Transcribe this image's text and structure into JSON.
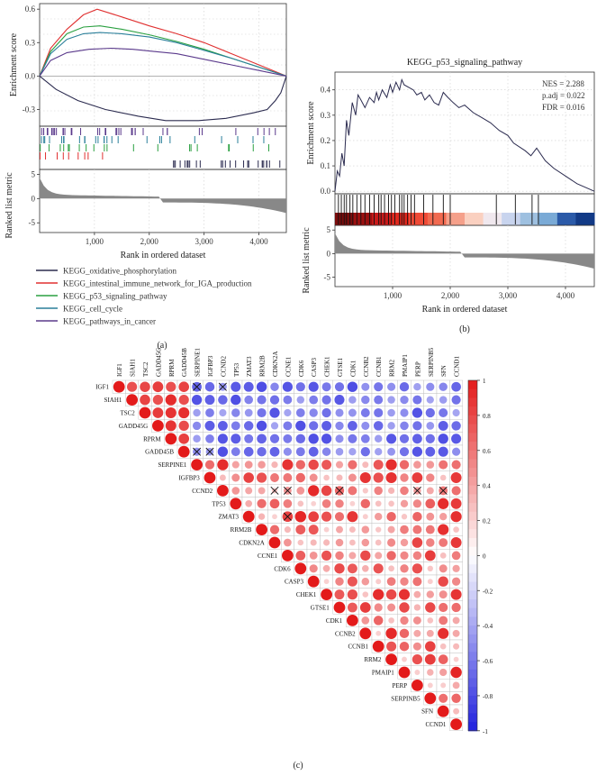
{
  "panel_labels": [
    "(a)",
    "(b)",
    "(c)"
  ],
  "colors": {
    "oxphos": "#2b2b4f",
    "iga": "#e03030",
    "p53": "#2aa040",
    "cellcycle": "#2a7f9a",
    "cancer": "#5b3a8c",
    "metric": "#888888",
    "pos": "#e31a1c",
    "neg": "#2233dd"
  },
  "chart_data": [
    {
      "type": "line",
      "panel": "(a)",
      "xlabel": "Rank in ordered dataset",
      "ylabel_top": "Enrichment score",
      "ylabel_bottom": "Ranked list metric",
      "x_ticks": [
        "1,000",
        "2,000",
        "3,000",
        "4,000"
      ],
      "x_tick_values": [
        1000,
        2000,
        3000,
        4000
      ],
      "xlim": [
        0,
        4500
      ],
      "y_ticks_top": [
        "0.6",
        "0.3",
        "0.0",
        "-0.3"
      ],
      "y_tick_values_top": [
        0.6,
        0.3,
        0.0,
        -0.3
      ],
      "ylim_top": [
        -0.45,
        0.65
      ],
      "y_ticks_bottom": [
        "5",
        "0",
        "-5"
      ],
      "y_tick_values_bottom": [
        5,
        0,
        -5
      ],
      "ylim_bottom": [
        -7,
        6
      ],
      "series": [
        {
          "name": "KEGG_oxidative_phosphorylation",
          "color_key": "oxphos",
          "x": [
            0,
            300,
            700,
            1200,
            1800,
            2300,
            2900,
            3400,
            3900,
            4150,
            4300,
            4400,
            4500
          ],
          "y": [
            0.0,
            -0.12,
            -0.22,
            -0.3,
            -0.36,
            -0.4,
            -0.4,
            -0.38,
            -0.33,
            -0.3,
            -0.22,
            -0.15,
            0.0
          ]
        },
        {
          "name": "KEGG_intestinal_immune_network_for_IGA_production",
          "color_key": "iga",
          "x": [
            0,
            200,
            500,
            800,
            1050,
            1500,
            2000,
            2500,
            3000,
            3500,
            4000,
            4500
          ],
          "y": [
            0.0,
            0.25,
            0.42,
            0.55,
            0.6,
            0.53,
            0.45,
            0.38,
            0.3,
            0.2,
            0.1,
            0.0
          ]
        },
        {
          "name": "KEGG_p53_signaling_pathway",
          "color_key": "p53",
          "x": [
            0,
            200,
            500,
            800,
            1100,
            1500,
            2000,
            2500,
            3000,
            3500,
            4000,
            4500
          ],
          "y": [
            0.0,
            0.22,
            0.38,
            0.44,
            0.45,
            0.42,
            0.37,
            0.31,
            0.24,
            0.16,
            0.08,
            0.0
          ]
        },
        {
          "name": "KEGG_cell_cycle",
          "color_key": "cellcycle",
          "x": [
            0,
            200,
            500,
            800,
            1100,
            1500,
            2000,
            2500,
            3000,
            3500,
            4000,
            4500
          ],
          "y": [
            0.0,
            0.2,
            0.33,
            0.38,
            0.39,
            0.38,
            0.35,
            0.3,
            0.23,
            0.16,
            0.08,
            0.0
          ]
        },
        {
          "name": "KEGG_pathways_in_cancer",
          "color_key": "cancer",
          "x": [
            0,
            200,
            500,
            900,
            1300,
            1700,
            2100,
            2500,
            3000,
            3500,
            4000,
            4500
          ],
          "y": [
            0.0,
            0.14,
            0.21,
            0.24,
            0.25,
            0.24,
            0.22,
            0.2,
            0.15,
            0.1,
            0.05,
            0.0
          ]
        }
      ]
    },
    {
      "type": "line",
      "panel": "(b)",
      "title": "KEGG_p53_signaling_pathway",
      "xlabel": "Rank in ordered dataset",
      "ylabel_top": "Enrichment score",
      "ylabel_bottom": "Ranked list metric",
      "x_ticks": [
        "1,000",
        "2,000",
        "3,000",
        "4,000"
      ],
      "x_tick_values": [
        1000,
        2000,
        3000,
        4000
      ],
      "xlim": [
        0,
        4500
      ],
      "y_ticks_top": [
        "0.4",
        "0.3",
        "0.2",
        "0.1",
        "0.0"
      ],
      "y_tick_values_top": [
        0.4,
        0.3,
        0.2,
        0.1,
        0.0
      ],
      "ylim_top": [
        -0.01,
        0.47
      ],
      "y_ticks_bottom": [
        "5",
        "0",
        "-5"
      ],
      "y_tick_values_bottom": [
        5,
        0,
        -5
      ],
      "ylim_bottom": [
        -7,
        6
      ],
      "stats": [
        "NES = 2.288",
        "p.adj = 0.022",
        "FDR = 0.016"
      ],
      "series": [
        {
          "name": "KEGG_p53_signaling_pathway",
          "color_key": "oxphos",
          "x": [
            0,
            40,
            80,
            120,
            160,
            200,
            240,
            300,
            360,
            400,
            450,
            520,
            600,
            680,
            720,
            760,
            820,
            900,
            960,
            1000,
            1060,
            1120,
            1160,
            1200,
            1280,
            1360,
            1420,
            1500,
            1560,
            1640,
            1720,
            1800,
            1880,
            1960,
            2050,
            2150,
            2250,
            2400,
            2550,
            2700,
            2850,
            3000,
            3100,
            3300,
            3400,
            3500,
            3650,
            3800,
            4000,
            4200,
            4500
          ],
          "y": [
            0.0,
            0.08,
            0.06,
            0.15,
            0.1,
            0.28,
            0.22,
            0.35,
            0.3,
            0.38,
            0.36,
            0.33,
            0.37,
            0.35,
            0.39,
            0.36,
            0.4,
            0.37,
            0.42,
            0.39,
            0.43,
            0.4,
            0.44,
            0.42,
            0.41,
            0.4,
            0.38,
            0.39,
            0.36,
            0.38,
            0.35,
            0.34,
            0.39,
            0.37,
            0.35,
            0.33,
            0.34,
            0.31,
            0.29,
            0.27,
            0.24,
            0.22,
            0.19,
            0.16,
            0.14,
            0.17,
            0.12,
            0.09,
            0.06,
            0.03,
            0.0
          ]
        }
      ]
    },
    {
      "type": "heatmap",
      "panel": "(c)",
      "genes": [
        "IGF1",
        "SIAH1",
        "TSC2",
        "GADD45G",
        "RPRM",
        "GADD45B",
        "SERPINE1",
        "IGFBP3",
        "CCND2",
        "TP53",
        "ZMAT3",
        "RRM2B",
        "CDKN2A",
        "CCNE1",
        "CDK6",
        "CASP3",
        "CHEK1",
        "GTSE1",
        "CDK1",
        "CCNB2",
        "CCNB1",
        "RRM2",
        "PMAIP1",
        "PERP",
        "SERPINB5",
        "SFN",
        "CCND1"
      ],
      "colorbar_ticks": [
        "1",
        "0.8",
        "0.6",
        "0.4",
        "0.2",
        "0",
        "-0.2",
        "-0.4",
        "-0.6",
        "-0.8",
        "-1"
      ],
      "colorbar_values": [
        1,
        0.8,
        0.6,
        0.4,
        0.2,
        0,
        -0.2,
        -0.4,
        -0.6,
        -0.8,
        -1
      ],
      "group_A": [
        "IGF1",
        "SIAH1",
        "TSC2",
        "GADD45G",
        "RPRM",
        "GADD45B"
      ],
      "within_group_corr": 0.85,
      "between_group_corr": -0.6,
      "group_B_corr_range": [
        0.2,
        0.95
      ],
      "nonsignificant_pairs": [
        [
          "IGF1",
          "SERPINE1"
        ],
        [
          "IGF1",
          "CCND2"
        ],
        [
          "GADD45B",
          "SERPINE1"
        ],
        [
          "GADD45B",
          "IGFBP3"
        ],
        [
          "CCND2",
          "CDKN2A"
        ],
        [
          "CCND2",
          "CCNE1"
        ],
        [
          "CCND2",
          "GTSE1"
        ],
        [
          "CCND2",
          "PERP"
        ],
        [
          "CCND2",
          "SFN"
        ],
        [
          "ZMAT3",
          "CCNE1"
        ]
      ]
    }
  ]
}
